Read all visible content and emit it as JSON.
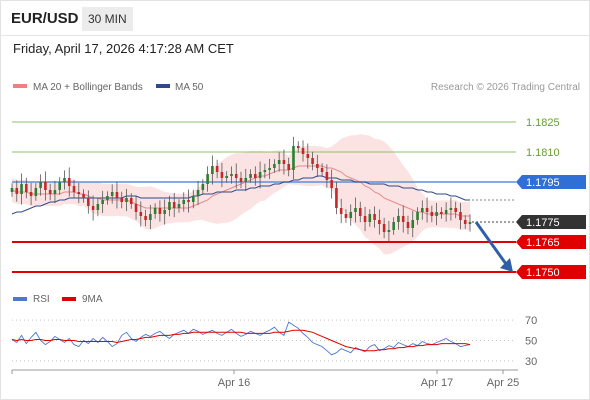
{
  "header": {
    "pair": "EUR/USD",
    "interval": "30 MIN",
    "datetime": "Friday, April 17, 2026 4:17:28 AM CET"
  },
  "legend": {
    "ma20_bb": "MA 20 + Bollinger Bands",
    "ma50": "MA 50",
    "credit": "Research © 2026 Trading Central",
    "rsi": "RSI",
    "ma9": "9MA"
  },
  "colors": {
    "bollinger": "#f08080",
    "ma50": "#2e4a8a",
    "green_level": "#8fc26a",
    "red_level": "#e00000",
    "pivot": "#5b8fe0",
    "arrow": "#2f5fa8",
    "bull": "#2e7d32",
    "bear": "#c62828",
    "rsi_line": "#4a78d4",
    "rsi_ma": "#e00000"
  },
  "chart_data": [
    {
      "type": "candlestick",
      "title": "EUR/USD 30 MIN",
      "ylim": [
        1.1741,
        1.1836
      ],
      "x_ticks": [
        "Apr 16",
        "Apr 17",
        "Apr 25"
      ],
      "levels": [
        {
          "label": "1.1825",
          "value": 1.1825,
          "kind": "resistance"
        },
        {
          "label": "1.1810",
          "value": 1.181,
          "kind": "resistance"
        },
        {
          "label": "1.1795",
          "value": 1.1795,
          "kind": "pivot"
        },
        {
          "label": "1.1775",
          "value": 1.1775,
          "kind": "current"
        },
        {
          "label": "1.1765",
          "value": 1.1765,
          "kind": "support"
        },
        {
          "label": "1.1750",
          "value": 1.175,
          "kind": "support"
        }
      ],
      "projection": {
        "from": 1.1775,
        "to": 1.175,
        "direction": "down"
      },
      "series": [
        {
          "name": "Price",
          "close": [
            1.1792,
            1.1789,
            1.1794,
            1.179,
            1.1788,
            1.1792,
            1.1795,
            1.1791,
            1.1789,
            1.1791,
            1.1795,
            1.1797,
            1.1793,
            1.179,
            1.1789,
            1.1787,
            1.1783,
            1.1781,
            1.1784,
            1.1786,
            1.1788,
            1.179,
            1.1787,
            1.1785,
            1.1787,
            1.1784,
            1.178,
            1.1778,
            1.1776,
            1.1779,
            1.1782,
            1.1779,
            1.1781,
            1.1785,
            1.1782,
            1.1784,
            1.1786,
            1.1785,
            1.1788,
            1.1791,
            1.1794,
            1.1799,
            1.1803,
            1.18,
            1.1797,
            1.1798,
            1.1799,
            1.1797,
            1.1795,
            1.1797,
            1.1799,
            1.1797,
            1.18,
            1.1801,
            1.1802,
            1.1804,
            1.1806,
            1.1804,
            1.1801,
            1.1813,
            1.1812,
            1.1809,
            1.1807,
            1.1804,
            1.1802,
            1.18,
            1.1796,
            1.1792,
            1.1782,
            1.1779,
            1.1777,
            1.178,
            1.1782,
            1.1778,
            1.1775,
            1.1779,
            1.1776,
            1.1774,
            1.177,
            1.1771,
            1.1775,
            1.1778,
            1.1775,
            1.1772,
            1.1776,
            1.178,
            1.1782,
            1.178,
            1.1778,
            1.178,
            1.1779,
            1.1781,
            1.1782,
            1.178,
            1.1776,
            1.1774,
            1.1775
          ]
        },
        {
          "name": "MA 20",
          "values": [
            1.1791,
            1.179,
            1.179,
            1.179,
            1.1789,
            1.1789,
            1.1789,
            1.1789,
            1.1789,
            1.1789,
            1.1789,
            1.179,
            1.179,
            1.179,
            1.1789,
            1.1789,
            1.1788,
            1.1787,
            1.1787,
            1.1786,
            1.1786,
            1.1786,
            1.1786,
            1.1786,
            1.1786,
            1.1785,
            1.1784,
            1.1783,
            1.1782,
            1.1782,
            1.1782,
            1.1782,
            1.1782,
            1.1782,
            1.1782,
            1.1782,
            1.1782,
            1.1782,
            1.1783,
            1.1784,
            1.1785,
            1.1786,
            1.1788,
            1.1789,
            1.179,
            1.1791,
            1.1792,
            1.1793,
            1.1794,
            1.1795,
            1.1796,
            1.1797,
            1.1798,
            1.1798,
            1.1799,
            1.18,
            1.1801,
            1.1801,
            1.1801,
            1.1802,
            1.1803,
            1.1803,
            1.1803,
            1.1803,
            1.1803,
            1.1803,
            1.1802,
            1.1802,
            1.1801,
            1.18,
            1.1798,
            1.1797,
            1.1796,
            1.1795,
            1.1793,
            1.1792,
            1.179,
            1.1789,
            1.1787,
            1.1786,
            1.1785,
            1.1784,
            1.1783,
            1.1782,
            1.1781,
            1.178,
            1.178,
            1.1779,
            1.1779,
            1.1779,
            1.1779,
            1.1779,
            1.1779,
            1.1779,
            1.1778,
            1.1778,
            1.1778
          ]
        },
        {
          "name": "MA 50",
          "values": [
            1.1779,
            1.178,
            1.178,
            1.1781,
            1.1782,
            1.1783,
            1.1783,
            1.1784,
            1.1785,
            1.1785,
            1.1786,
            1.1786,
            1.1787,
            1.1787,
            1.1787,
            1.1787,
            1.1787,
            1.1787,
            1.1787,
            1.1787,
            1.1787,
            1.1787,
            1.1787,
            1.1787,
            1.1788,
            1.1788,
            1.1788,
            1.1787,
            1.1787,
            1.1787,
            1.1787,
            1.1787,
            1.1787,
            1.1787,
            1.1787,
            1.1787,
            1.1787,
            1.1787,
            1.1788,
            1.1788,
            1.1789,
            1.1789,
            1.1789,
            1.179,
            1.179,
            1.179,
            1.179,
            1.1791,
            1.1791,
            1.1791,
            1.1792,
            1.1792,
            1.1793,
            1.1793,
            1.1793,
            1.1794,
            1.1794,
            1.1795,
            1.1795,
            1.1796,
            1.1796,
            1.1797,
            1.1797,
            1.1797,
            1.1798,
            1.1798,
            1.1797,
            1.1797,
            1.1797,
            1.1796,
            1.1796,
            1.1796,
            1.1795,
            1.1795,
            1.1795,
            1.1794,
            1.1794,
            1.1794,
            1.1794,
            1.1793,
            1.1793,
            1.1793,
            1.1792,
            1.1792,
            1.1792,
            1.1791,
            1.1791,
            1.179,
            1.179,
            1.1789,
            1.1789,
            1.1789,
            1.1788,
            1.1788,
            1.1787,
            1.1786,
            1.1786
          ]
        }
      ]
    },
    {
      "type": "line",
      "title": "RSI",
      "ylim": [
        25,
        75
      ],
      "y_ticks": [
        "70",
        "50",
        "30"
      ],
      "series": [
        {
          "name": "RSI",
          "values": [
            51,
            48,
            55,
            47,
            53,
            58,
            50,
            46,
            49,
            54,
            51,
            48,
            52,
            46,
            44,
            50,
            47,
            52,
            48,
            53,
            49,
            44,
            47,
            55,
            58,
            52,
            49,
            53,
            56,
            54,
            57,
            59,
            55,
            52,
            56,
            58,
            60,
            57,
            61,
            59,
            56,
            58,
            60,
            57,
            55,
            58,
            61,
            57,
            54,
            56,
            59,
            57,
            55,
            58,
            60,
            63,
            58,
            55,
            68,
            65,
            62,
            57,
            53,
            48,
            46,
            44,
            40,
            36,
            38,
            42,
            40,
            38,
            43,
            41,
            39,
            44,
            46,
            40,
            42,
            45,
            43,
            48,
            46,
            44,
            47,
            45,
            49,
            47,
            46,
            48,
            50,
            52,
            49,
            47,
            44,
            45,
            46
          ]
        },
        {
          "name": "9MA",
          "values": [
            51,
            50,
            51,
            50,
            50,
            51,
            51,
            50,
            50,
            51,
            51,
            50,
            50,
            50,
            49,
            49,
            49,
            49,
            49,
            49,
            49,
            49,
            48,
            49,
            50,
            51,
            51,
            52,
            53,
            53,
            54,
            55,
            55,
            55,
            56,
            56,
            57,
            57,
            58,
            58,
            58,
            58,
            58,
            58,
            58,
            58,
            58,
            58,
            58,
            57,
            57,
            57,
            57,
            57,
            57,
            58,
            58,
            58,
            59,
            60,
            60,
            60,
            59,
            58,
            56,
            54,
            52,
            50,
            48,
            46,
            44,
            43,
            42,
            41,
            40,
            40,
            40,
            41,
            41,
            42,
            42,
            43,
            43,
            44,
            44,
            45,
            45,
            46,
            46,
            46,
            47,
            47,
            47,
            47,
            47,
            47,
            46
          ]
        }
      ]
    }
  ]
}
